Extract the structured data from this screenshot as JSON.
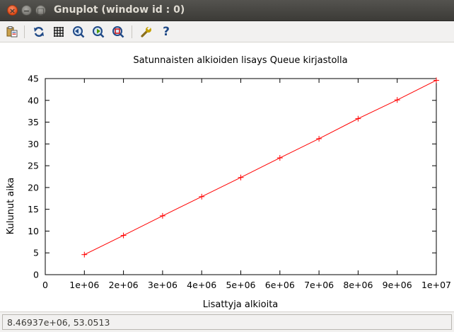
{
  "window": {
    "title": "Gnuplot (window id : 0)",
    "close_glyph": "×",
    "minimize_glyph": "−",
    "maximize_glyph": "□"
  },
  "toolbar": {
    "icons": [
      "copy-to-clipboard-icon",
      "replot-icon",
      "grid-icon",
      "zoom-previous-icon",
      "zoom-next-icon",
      "autoscale-icon",
      "settings-wrench-icon",
      "help-icon"
    ],
    "help_glyph": "?"
  },
  "status": {
    "coordinates": "8.46937e+06, 53.0513"
  },
  "colors": {
    "series": "#ff0000",
    "axis": "#000000",
    "titlebar": "#3c3b37"
  },
  "chart_data": {
    "type": "line",
    "title": "Satunnaisten alkioiden lisays Queue kirjastolla",
    "xlabel": "Lisattyja alkioita",
    "ylabel": "Kulunut aika",
    "xlim": [
      0,
      10000000
    ],
    "ylim": [
      0,
      45
    ],
    "xticks": [
      0,
      1000000,
      2000000,
      3000000,
      4000000,
      5000000,
      6000000,
      7000000,
      8000000,
      9000000,
      10000000
    ],
    "xtick_labels": [
      "0",
      "1e+06",
      "2e+06",
      "3e+06",
      "4e+06",
      "5e+06",
      "6e+06",
      "7e+06",
      "8e+06",
      "9e+06",
      "1e+07"
    ],
    "yticks": [
      0,
      5,
      10,
      15,
      20,
      25,
      30,
      35,
      40,
      45
    ],
    "ytick_labels": [
      "0",
      "5",
      "10",
      "15",
      "20",
      "25",
      "30",
      "35",
      "40",
      "45"
    ],
    "grid": false,
    "legend": "none",
    "marker": "plus",
    "series": [
      {
        "x": [
          1000000,
          2000000,
          3000000,
          4000000,
          5000000,
          6000000,
          7000000,
          8000000,
          9000000,
          10000000
        ],
        "values": [
          4.6,
          9.0,
          13.5,
          17.9,
          22.3,
          26.8,
          31.2,
          35.8,
          40.1,
          44.6
        ]
      }
    ]
  }
}
